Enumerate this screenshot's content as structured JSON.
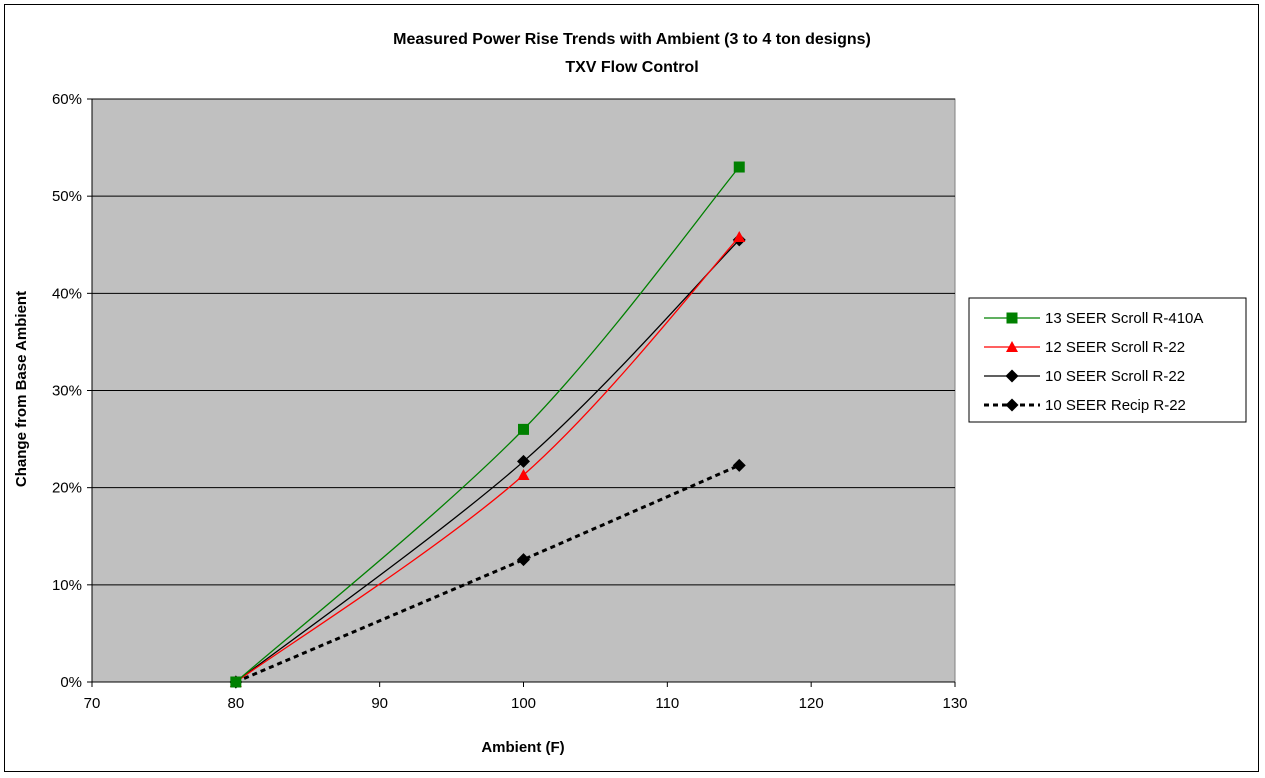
{
  "chart_data": {
    "type": "line",
    "title": "Measured Power Rise Trends with Ambient (3 to 4 ton designs)",
    "subtitle": "TXV Flow Control",
    "xlabel": "Ambient (F)",
    "ylabel": "Change from Base Ambient",
    "xlim": [
      70,
      130
    ],
    "ylim": [
      0,
      0.6
    ],
    "xticks": [
      "70",
      "80",
      "90",
      "100",
      "110",
      "120",
      "130"
    ],
    "yticks": [
      "0%",
      "10%",
      "20%",
      "30%",
      "40%",
      "50%",
      "60%"
    ],
    "grid": "horizontal",
    "plot_background": "#c0c0c0",
    "legend_position": "right",
    "series": [
      {
        "name": "13 SEER Scroll R-410A",
        "color": "#008000",
        "marker": "square",
        "line_style": "solid",
        "x": [
          80,
          100,
          115
        ],
        "y": [
          0.0,
          0.26,
          0.53
        ]
      },
      {
        "name": "12 SEER Scroll R-22",
        "color": "#ff0000",
        "marker": "triangle",
        "line_style": "solid",
        "x": [
          80,
          100,
          115
        ],
        "y": [
          0.0,
          0.213,
          0.458
        ]
      },
      {
        "name": "10 SEER Scroll R-22",
        "color": "#000000",
        "marker": "diamond",
        "line_style": "solid",
        "x": [
          80,
          100,
          115
        ],
        "y": [
          0.0,
          0.227,
          0.455
        ]
      },
      {
        "name": "10 SEER Recip R-22",
        "color": "#000000",
        "marker": "diamond",
        "line_style": "dashed",
        "x": [
          80,
          100,
          115
        ],
        "y": [
          0.0,
          0.126,
          0.223
        ]
      }
    ]
  }
}
